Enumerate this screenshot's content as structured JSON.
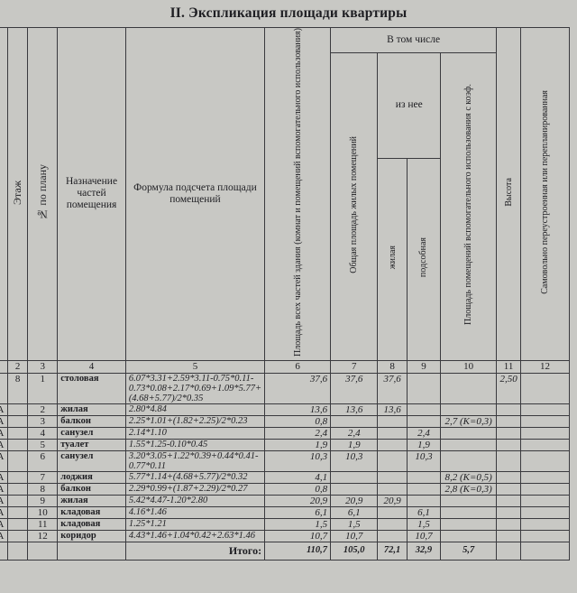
{
  "title": "II. Экспликация площади квартиры",
  "headers": {
    "floor": "Этаж",
    "plan_no": "№ по плану",
    "purpose": "Назначение частей помещения",
    "formula": "Формула подсчета площади помещений",
    "total_area": "Площадь всех частей здания (комнат и помещений вспомогательного использования)",
    "including": "В том числе",
    "general": "Общая площадь жилых помещений",
    "of_it": "из нее",
    "living": "жилая",
    "auxiliary": "подсобная",
    "aux_coef": "Площадь помещений вспомогательного использования с коэф.",
    "height": "Высота",
    "unauthorized": "Самовольно переустроенная или перепланированная"
  },
  "col_numbers": [
    "",
    "2",
    "3",
    "4",
    "5",
    "6",
    "7",
    "8",
    "9",
    "10",
    "11",
    "12"
  ],
  "rows": [
    {
      "c1": "",
      "floor": "8",
      "no": "1",
      "name": "столовая",
      "formula": "6.07*3.31+2.59*3.11-0.75*0.11-0.73*0.08+2.17*0.69+1.09*5.77+(4.68+5.77)/2*0.35",
      "total": "37,6",
      "general": "37,6",
      "living": "37,6",
      "aux": "",
      "coef": "",
      "height": "2,50"
    },
    {
      "c1": "А",
      "floor": "",
      "no": "2",
      "name": "жилая",
      "formula": "2.80*4.84",
      "total": "13,6",
      "general": "13,6",
      "living": "13,6",
      "aux": "",
      "coef": "",
      "height": ""
    },
    {
      "c1": "А",
      "floor": "",
      "no": "3",
      "name": "балкон",
      "formula": "2.25*1.01+(1.82+2.25)/2*0.23",
      "total": "0,8",
      "general": "",
      "living": "",
      "aux": "",
      "coef": "2,7 (К=0,3)",
      "height": ""
    },
    {
      "c1": "А",
      "floor": "",
      "no": "4",
      "name": "санузел",
      "formula": "2.14*1.10",
      "total": "2,4",
      "general": "2,4",
      "living": "",
      "aux": "2,4",
      "coef": "",
      "height": ""
    },
    {
      "c1": "А",
      "floor": "",
      "no": "5",
      "name": "туалет",
      "formula": "1.55*1.25-0.10*0.45",
      "total": "1,9",
      "general": "1,9",
      "living": "",
      "aux": "1,9",
      "coef": "",
      "height": ""
    },
    {
      "c1": "А",
      "floor": "",
      "no": "6",
      "name": "санузел",
      "formula": "3.20*3.05+1.22*0.39+0.44*0.41-0.77*0.11",
      "total": "10,3",
      "general": "10,3",
      "living": "",
      "aux": "10,3",
      "coef": "",
      "height": ""
    },
    {
      "c1": "А",
      "floor": "",
      "no": "7",
      "name": "лоджия",
      "formula": "5.77*1.14+(4.68+5.77)/2*0.32",
      "total": "4,1",
      "general": "",
      "living": "",
      "aux": "",
      "coef": "8,2 (К=0,5)",
      "height": ""
    },
    {
      "c1": "А",
      "floor": "",
      "no": "8",
      "name": "балкон",
      "formula": "2.29*0.99+(1.87+2.29)/2*0.27",
      "total": "0,8",
      "general": "",
      "living": "",
      "aux": "",
      "coef": "2,8 (К=0,3)",
      "height": ""
    },
    {
      "c1": "А",
      "floor": "",
      "no": "9",
      "name": "жилая",
      "formula": "5.42*4.47-1.20*2.80",
      "total": "20,9",
      "general": "20,9",
      "living": "20,9",
      "aux": "",
      "coef": "",
      "height": ""
    },
    {
      "c1": "А",
      "floor": "",
      "no": "10",
      "name": "кладовая",
      "formula": "4.16*1.46",
      "total": "6,1",
      "general": "6,1",
      "living": "",
      "aux": "6,1",
      "coef": "",
      "height": ""
    },
    {
      "c1": "А",
      "floor": "",
      "no": "11",
      "name": "кладовая",
      "formula": "1.25*1.21",
      "total": "1,5",
      "general": "1,5",
      "living": "",
      "aux": "1,5",
      "coef": "",
      "height": ""
    },
    {
      "c1": "А",
      "floor": "",
      "no": "12",
      "name": "коридор",
      "formula": "4.43*1.46+1.04*0.42+2.63*1.46",
      "total": "10,7",
      "general": "10,7",
      "living": "",
      "aux": "10,7",
      "coef": "",
      "height": ""
    }
  ],
  "totals": {
    "label": "Итого:",
    "total": "110,7",
    "general": "105,0",
    "living": "72,1",
    "aux": "32,9",
    "coef": "5,7"
  }
}
